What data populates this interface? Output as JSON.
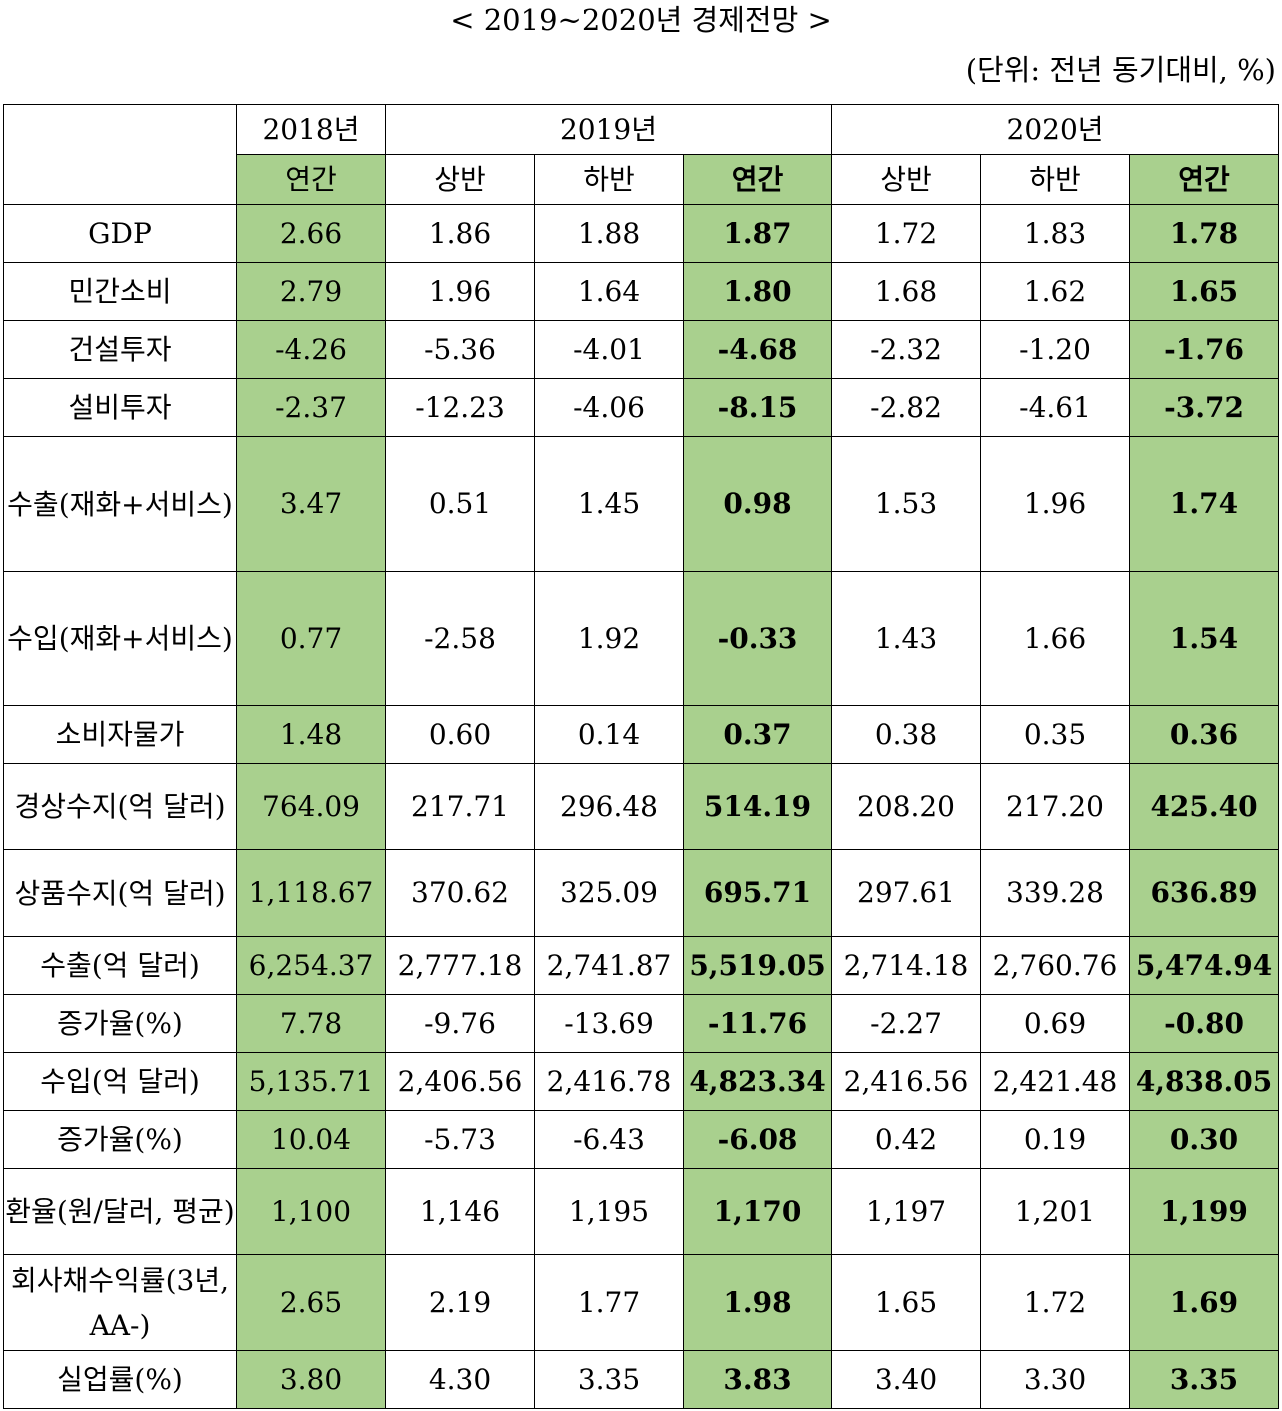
{
  "title": "< 2019~2020년 경제전망 >",
  "unit_note": "(단위: 전년 동기대비, %)",
  "header": {
    "year_2018": "2018년",
    "year_2019": "2019년",
    "year_2020": "2020년",
    "annual": "연간",
    "first_half": "상반",
    "second_half": "하반"
  },
  "rows": [
    {
      "label": "GDP",
      "values": [
        "2.66",
        "1.86",
        "1.88",
        "1.87",
        "1.72",
        "1.83",
        "1.78"
      ]
    },
    {
      "label": "민간소비",
      "values": [
        "2.79",
        "1.96",
        "1.64",
        "1.80",
        "1.68",
        "1.62",
        "1.65"
      ]
    },
    {
      "label": "건설투자",
      "values": [
        "-4.26",
        "-5.36",
        "-4.01",
        "-4.68",
        "-2.32",
        "-1.20",
        "-1.76"
      ]
    },
    {
      "label": "설비투자",
      "values": [
        "-2.37",
        "-12.23",
        "-4.06",
        "-8.15",
        "-2.82",
        "-4.61",
        "-3.72"
      ]
    },
    {
      "label": "수출(재화+서비스)",
      "values": [
        "3.47",
        "0.51",
        "1.45",
        "0.98",
        "1.53",
        "1.96",
        "1.74"
      ]
    },
    {
      "label": "수입(재화+서비스)",
      "values": [
        "0.77",
        "-2.58",
        "1.92",
        "-0.33",
        "1.43",
        "1.66",
        "1.54"
      ]
    },
    {
      "label": "소비자물가",
      "values": [
        "1.48",
        "0.60",
        "0.14",
        "0.37",
        "0.38",
        "0.35",
        "0.36"
      ]
    },
    {
      "label": "경상수지(억 달러)",
      "values": [
        "764.09",
        "217.71",
        "296.48",
        "514.19",
        "208.20",
        "217.20",
        "425.40"
      ]
    },
    {
      "label": "상품수지(억 달러)",
      "values": [
        "1,118.67",
        "370.62",
        "325.09",
        "695.71",
        "297.61",
        "339.28",
        "636.89"
      ]
    },
    {
      "label": "수출(억 달러)",
      "values": [
        "6,254.37",
        "2,777.18",
        "2,741.87",
        "5,519.05",
        "2,714.18",
        "2,760.76",
        "5,474.94"
      ]
    },
    {
      "label": "증가율(%)",
      "values": [
        "7.78",
        "-9.76",
        "-13.69",
        "-11.76",
        "-2.27",
        "0.69",
        "-0.80"
      ]
    },
    {
      "label": "수입(억 달러)",
      "values": [
        "5,135.71",
        "2,406.56",
        "2,416.78",
        "4,823.34",
        "2,416.56",
        "2,421.48",
        "4,838.05"
      ]
    },
    {
      "label": "증가율(%)",
      "values": [
        "10.04",
        "-5.73",
        "-6.43",
        "-6.08",
        "0.42",
        "0.19",
        "0.30"
      ]
    },
    {
      "label": "환율(원/달러, 평균)",
      "values": [
        "1,100",
        "1,146",
        "1,195",
        "1,170",
        "1,197",
        "1,201",
        "1,199"
      ]
    },
    {
      "label": "회사채수익률(3년, AA-)",
      "values": [
        "2.65",
        "2.19",
        "1.77",
        "1.98",
        "1.65",
        "1.72",
        "1.69"
      ]
    },
    {
      "label": "실업률(%)",
      "values": [
        "3.80",
        "4.30",
        "3.35",
        "3.83",
        "3.40",
        "3.30",
        "3.35"
      ]
    }
  ],
  "colors": {
    "annual_highlight": "#a9d08e",
    "border": "#000000"
  }
}
